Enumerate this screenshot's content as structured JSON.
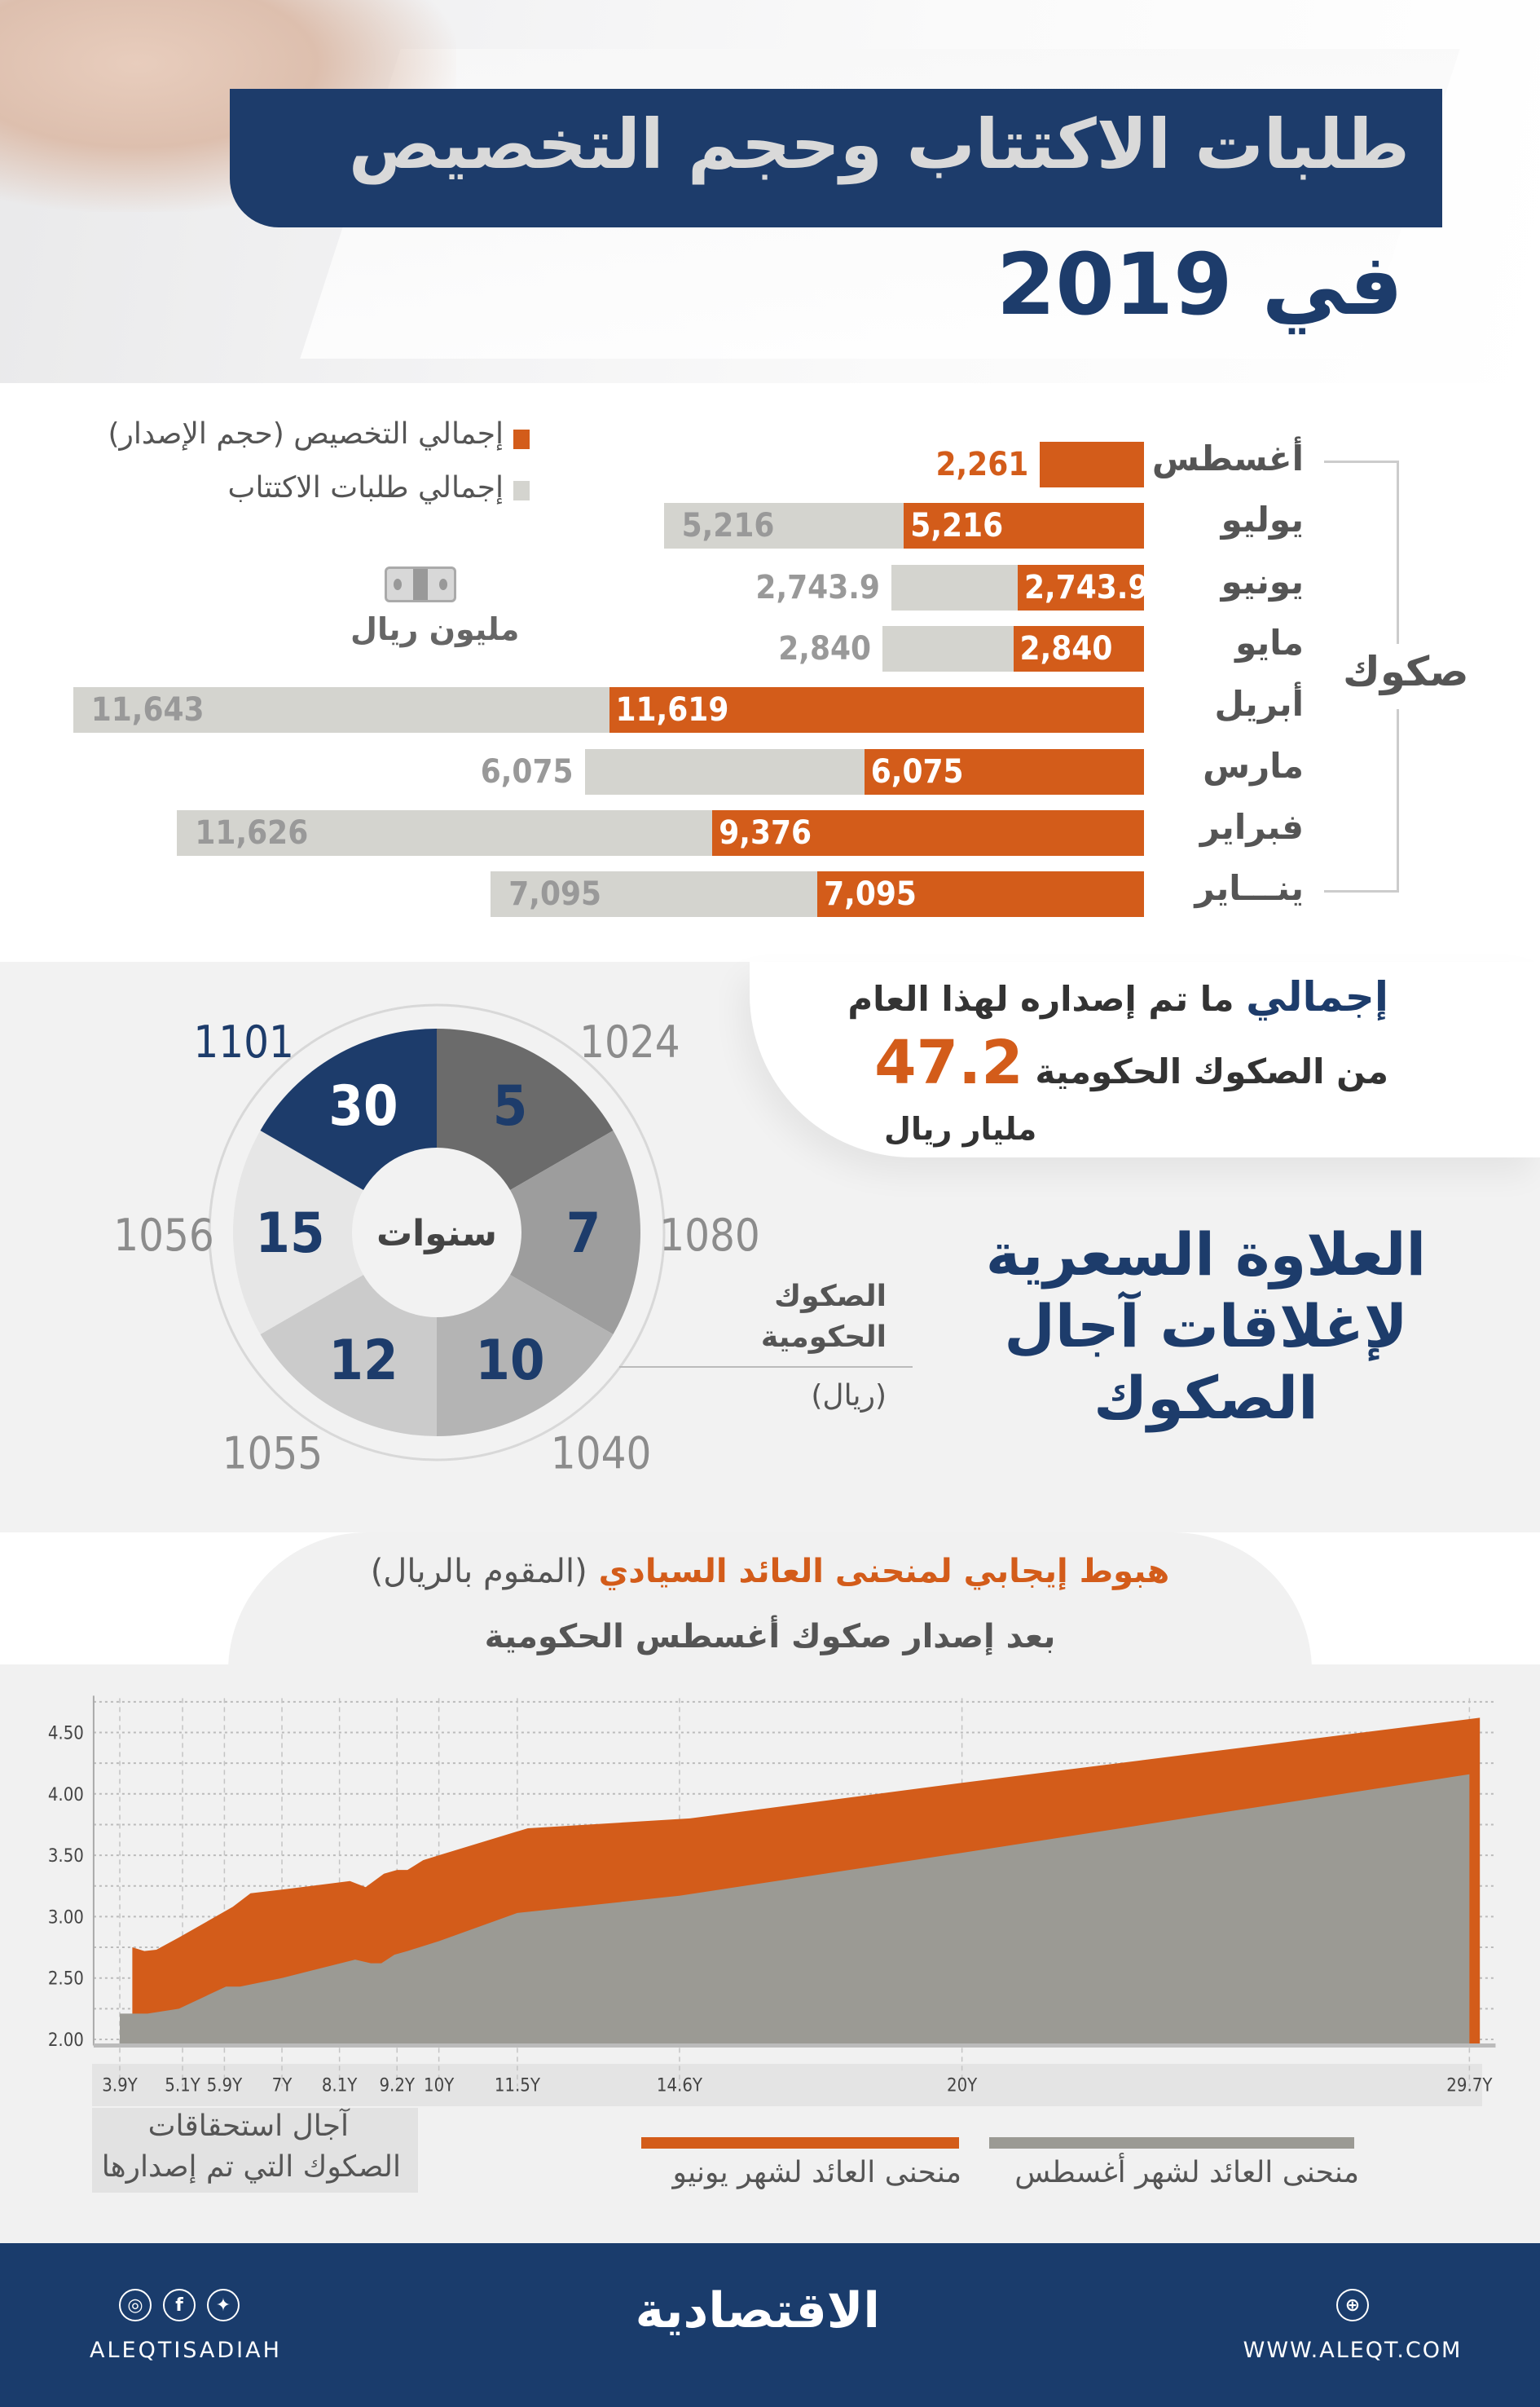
{
  "header": {
    "title": "طلبات الاكتتاب وحجم التخصيص",
    "subtitle": "في 2019"
  },
  "colors": {
    "navy": "#1d3c6b",
    "orange": "#d35c1a",
    "gray": "#d4d4cf",
    "gray_curve": "#9b9a94"
  },
  "chart_data": [
    {
      "type": "bar",
      "orientation": "horizontal",
      "group_label": "صكوك",
      "unit": "مليون ريال",
      "unit_icon": "money-icon",
      "legend": [
        {
          "name": "إجمالي التخصيص (حجم الإصدار)",
          "color": "#d35c1a"
        },
        {
          "name": "إجمالي طلبات الاكتتاب",
          "color": "#d4d4cf"
        }
      ],
      "categories": [
        "أغسطس",
        "يوليو",
        "يونيو",
        "مايو",
        "أبريل",
        "مارس",
        "فبراير",
        "ينـــاير"
      ],
      "series": [
        {
          "name": "إجمالي التخصيص (حجم الإصدار)",
          "values": [
            2261,
            5216,
            2743.9,
            2840,
            11619,
            6075,
            9376,
            7095
          ],
          "labels": [
            "2,261",
            "5,216",
            "2,743.9",
            "2,840",
            "11,619",
            "6,075",
            "9,376",
            "7,095"
          ]
        },
        {
          "name": "إجمالي طلبات الاكتتاب",
          "values": [
            null,
            5216,
            2743.9,
            2840,
            11643,
            6075,
            11626,
            7095
          ],
          "labels": [
            "",
            "5,216",
            "2,743.9",
            "2,840",
            "11,643",
            "6,075",
            "11,626",
            "7,095"
          ]
        }
      ]
    },
    {
      "type": "pie",
      "donut": true,
      "center_label": "سنوات",
      "title": "العلاوة السعرية لإغلاقات آجال الصكوك",
      "value_label": [
        "الصكوك",
        "الحكومية",
        "(ريال)"
      ],
      "slices": [
        {
          "tenor": "5",
          "price": "1024",
          "color": "#6b6b6b"
        },
        {
          "tenor": "7",
          "price": "1080",
          "color": "#9d9d9d"
        },
        {
          "tenor": "10",
          "price": "1040",
          "color": "#b4b4b4"
        },
        {
          "tenor": "12",
          "price": "1055",
          "color": "#cbcbcb"
        },
        {
          "tenor": "15",
          "price": "1056",
          "color": "#e6e6e6"
        },
        {
          "tenor": "30",
          "price": "1101",
          "color": "#1d3c6b"
        }
      ]
    },
    {
      "type": "area",
      "title_highlight": "هبوط إيجابي لمنحنى العائد السيادي",
      "title_rest": "(المقوم بالريال)",
      "subtitle": "بعد إصدار صكوك أغسطس الحكومية",
      "xlabel": [
        "آجال استحقاقات",
        "الصكوك التي تم إصدارها"
      ],
      "x_ticks": [
        "3.9Y",
        "5.1Y",
        "5.9Y",
        "7Y",
        "8.1Y",
        "9.2Y",
        "10Y",
        "11.5Y",
        "14.6Y",
        "20Y",
        "29.7Y"
      ],
      "x_tick_values": [
        3.9,
        5.1,
        5.9,
        7,
        8.1,
        9.2,
        10,
        11.5,
        14.6,
        20,
        29.7
      ],
      "y_ticks": [
        "2.00",
        "2.50",
        "3.00",
        "3.50",
        "4.00",
        "4.50"
      ],
      "xlim": [
        3.4,
        30.2
      ],
      "ylim": [
        1.95,
        4.8
      ],
      "grid": true,
      "legend_placement": "bottom",
      "series": [
        {
          "name": "منحنى العائد لشهر يونيو",
          "color": "#d35c1a",
          "x": [
            4.14,
            4.37,
            4.6,
            5.03,
            6.06,
            6.4,
            7.0,
            8.3,
            8.6,
            8.95,
            9.2,
            9.4,
            9.7,
            10.0,
            11.7,
            14.8,
            20.0,
            29.9
          ],
          "y": [
            2.75,
            2.72,
            2.73,
            2.83,
            3.08,
            3.19,
            3.22,
            3.29,
            3.24,
            3.35,
            3.38,
            3.38,
            3.46,
            3.5,
            3.72,
            3.8,
            4.09,
            4.62
          ]
        },
        {
          "name": "منحنى العائد لشهر أغسطس",
          "color": "#9b9a94",
          "x": [
            3.9,
            4.43,
            5.03,
            5.93,
            6.2,
            7.0,
            8.4,
            8.7,
            8.9,
            9.15,
            9.4,
            10.0,
            11.5,
            14.6,
            20.0,
            29.7
          ],
          "y": [
            2.21,
            2.21,
            2.25,
            2.43,
            2.43,
            2.5,
            2.65,
            2.62,
            2.62,
            2.69,
            2.72,
            2.8,
            3.03,
            3.17,
            3.52,
            4.16
          ]
        }
      ]
    }
  ],
  "summary": {
    "line1_bold": "إجمالي",
    "line1": "ما تم إصداره لهذا العام",
    "line2": "من الصكوك الحكومية",
    "value": "47.2",
    "unit": "مليار ريال"
  },
  "footer": {
    "social_handle": "ALEQTISADIAH",
    "logo": "الاقتصادية",
    "website": "WWW.ALEQT.COM",
    "icons": [
      "instagram-icon",
      "facebook-icon",
      "twitter-icon",
      "web-icon"
    ]
  }
}
